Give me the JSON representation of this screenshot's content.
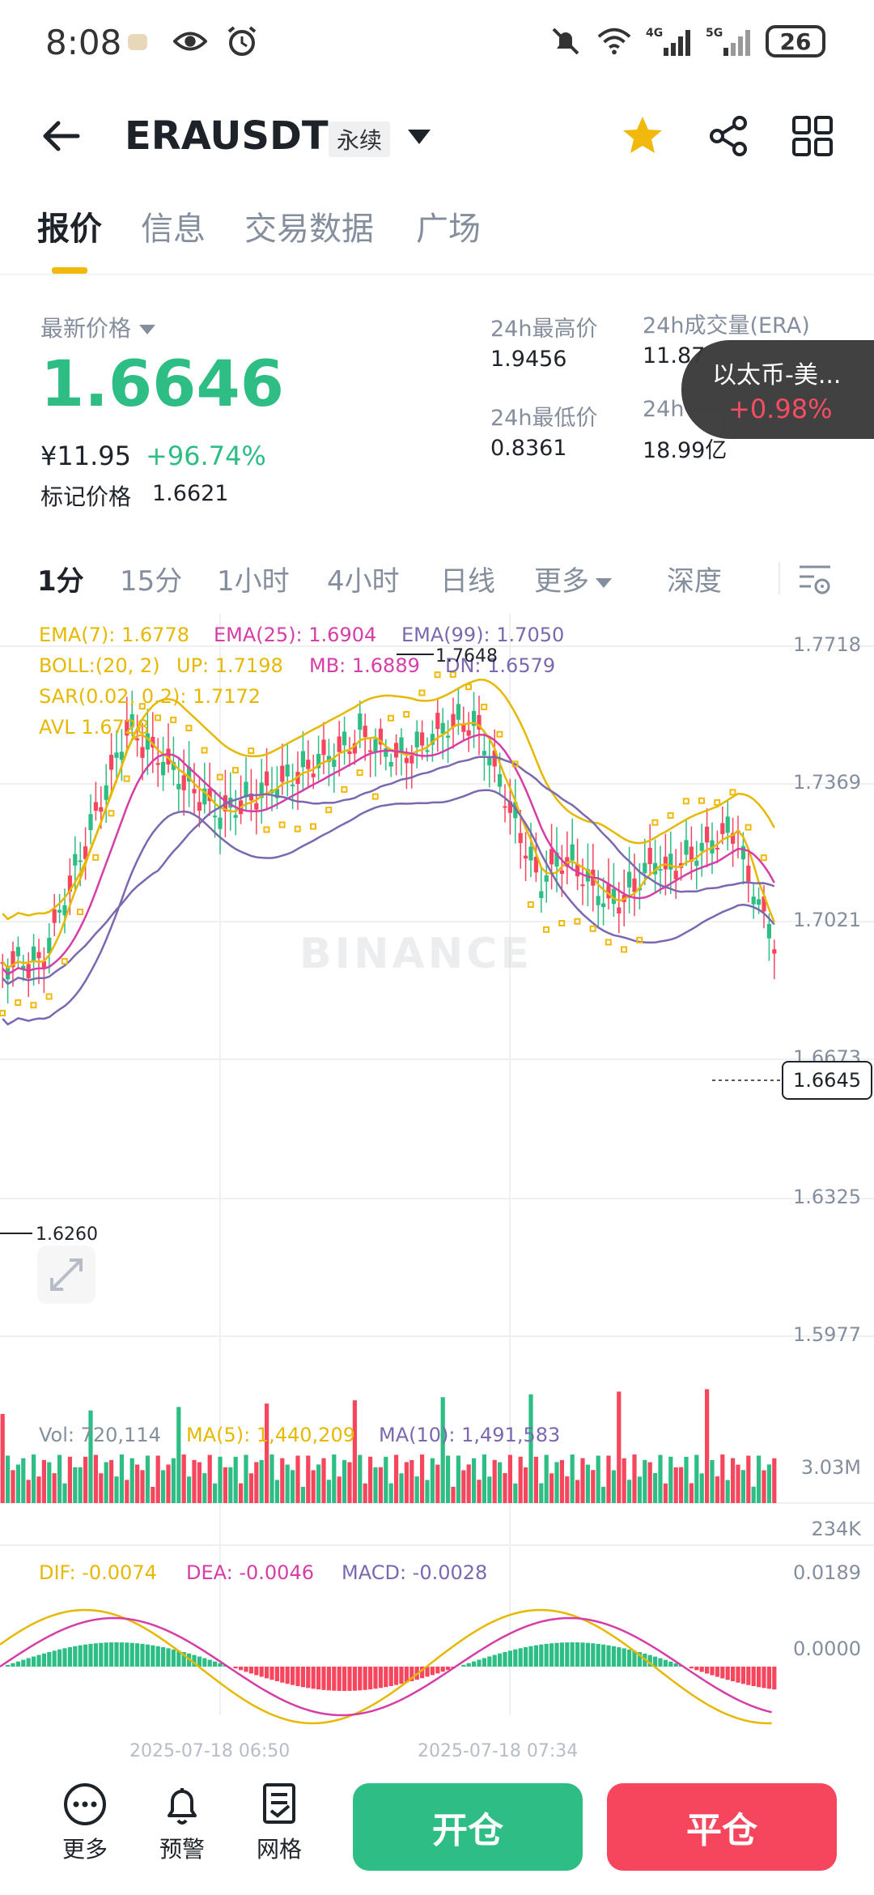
{
  "status_bar": {
    "time": "8:08",
    "battery": "26",
    "icons": [
      "notification-icon",
      "eye-icon",
      "alarm-icon",
      "mute-bell-icon",
      "wifi-icon",
      "signal-4g-icon",
      "signal-5g-icon"
    ],
    "network_4g": "4G",
    "network_5g": "5G"
  },
  "header": {
    "pair": "ERAUSDT",
    "contract_type": "永续",
    "favorite_color": "#f0b90b"
  },
  "tabs": [
    {
      "label": "报价",
      "active": true
    },
    {
      "label": "信息",
      "active": false
    },
    {
      "label": "交易数据",
      "active": false
    },
    {
      "label": "广场",
      "active": false
    }
  ],
  "price": {
    "label": "最新价格",
    "last": "1.6646",
    "cny": "¥11.95",
    "change": "+96.74%",
    "mark_label": "标记价格",
    "mark_value": "1.6621",
    "up_color": "#2ebd85",
    "down_color": "#f6465d"
  },
  "stats": {
    "high_label": "24h最高价",
    "high": "1.9456",
    "low_label": "24h最低价",
    "low": "0.8361",
    "vol_label": "24h成交量(ERA)",
    "vol": "11.87",
    "turnover_label": "24h",
    "turnover": "18.99亿"
  },
  "floating_ticker": {
    "name": "以太币-美...",
    "change": "+0.98%"
  },
  "intervals": [
    {
      "label": "1分",
      "active": true
    },
    {
      "label": "15分",
      "active": false
    },
    {
      "label": "1小时",
      "active": false
    },
    {
      "label": "4小时",
      "active": false
    },
    {
      "label": "日线",
      "active": false
    },
    {
      "label": "更多",
      "active": false
    },
    {
      "label": "深度",
      "active": false
    }
  ],
  "indicators": {
    "ema7": "EMA(7): 1.6778",
    "ema25": "EMA(25): 1.6904",
    "ema99": "EMA(99): 1.7050",
    "boll": "BOLL:(20, 2)",
    "boll_up": "UP: 1.7198",
    "boll_mb": "MB: 1.6889",
    "boll_dn": "DN: 1.6579",
    "sar": "SAR(0.02, 0.2): 1.7172",
    "avl": "AVL 1.6728",
    "vol": "Vol: 720,114",
    "vol_ma5": "MA(5): 1,440,209",
    "vol_ma10": "MA(10): 1,491,583",
    "dif": "DIF: -0.0074",
    "dea": "DEA: -0.0046",
    "macd": "MACD: -0.0028"
  },
  "chart_data": {
    "type": "candlestick",
    "price_axis": [
      "1.7718",
      "1.7369",
      "1.7021",
      "1.6673",
      "1.6325",
      "1.5977"
    ],
    "current_price_tag": "1.6645",
    "high_marker": "1.7648",
    "low_marker": "1.6260",
    "volume_axis": [
      "3.03M",
      "234K"
    ],
    "macd_axis": [
      "0.0189",
      "0.0000"
    ],
    "time_labels": [
      "2025-07-18 06:50",
      "2025-07-18 07:34"
    ],
    "watermark": "BINANCE",
    "colors": {
      "ema7": "#e6b800",
      "ema25": "#d63ea7",
      "ema99": "#7b68b0",
      "sar": "#f0b90b"
    }
  },
  "bottom_bar": {
    "more": "更多",
    "alert": "预警",
    "grid": "网格",
    "open": "开仓",
    "close": "平仓"
  }
}
